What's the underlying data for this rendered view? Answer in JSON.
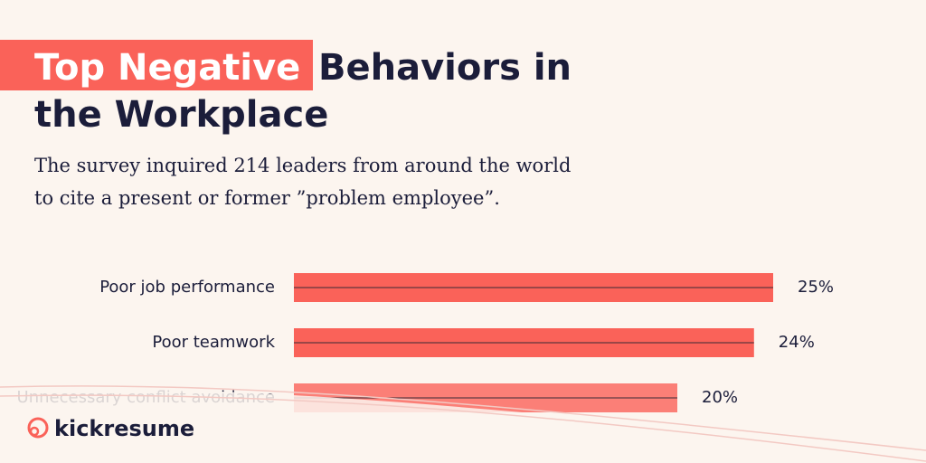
{
  "chart_data": {
    "type": "bar",
    "orientation": "horizontal",
    "title_highlight": "Top Negative",
    "title": "Behaviors in the Workplace",
    "subtitle": "The survey inquired 214 leaders from around the world to cite a present or former ”problem employee”.",
    "categories": [
      "Poor job performance",
      "Poor teamwork",
      "Unnecessary conflict avoidance"
    ],
    "values": [
      25,
      24,
      20
    ],
    "value_labels": [
      "25%",
      "24%",
      "20%"
    ],
    "color": "#fa6259",
    "brand": "kickresume"
  }
}
